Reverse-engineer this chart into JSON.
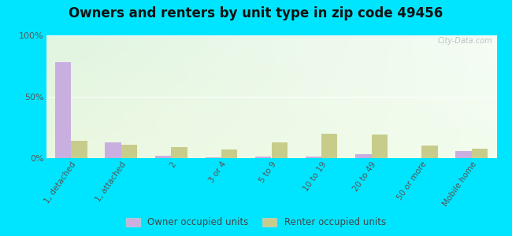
{
  "title": "Owners and renters by unit type in zip code 49456",
  "categories": [
    "1, detached",
    "1, attached",
    "2",
    "3 or 4",
    "5 to 9",
    "10 to 19",
    "20 to 49",
    "50 or more",
    "Mobile home"
  ],
  "owner_values": [
    78,
    13,
    2,
    0.5,
    1,
    1,
    3,
    0,
    6
  ],
  "renter_values": [
    14,
    11,
    9,
    7,
    13,
    20,
    19,
    10,
    8
  ],
  "owner_color": "#c9aee0",
  "renter_color": "#c8cc8a",
  "outer_bg": "#00e5ff",
  "ylim": [
    0,
    100
  ],
  "yticks": [
    0,
    50,
    100
  ],
  "ytick_labels": [
    "0%",
    "50%",
    "100%"
  ],
  "bar_width": 0.32,
  "title_fontsize": 12,
  "legend_owner": "Owner occupied units",
  "legend_renter": "Renter occupied units",
  "watermark": "City-Data.com"
}
